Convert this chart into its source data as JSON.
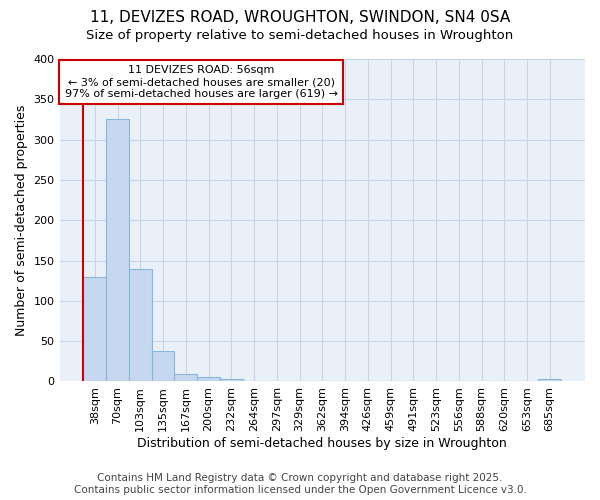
{
  "title1": "11, DEVIZES ROAD, WROUGHTON, SWINDON, SN4 0SA",
  "title2": "Size of property relative to semi-detached houses in Wroughton",
  "xlabel": "Distribution of semi-detached houses by size in Wroughton",
  "ylabel": "Number of semi-detached properties",
  "categories": [
    "38sqm",
    "70sqm",
    "103sqm",
    "135sqm",
    "167sqm",
    "200sqm",
    "232sqm",
    "264sqm",
    "297sqm",
    "329sqm",
    "362sqm",
    "394sqm",
    "426sqm",
    "459sqm",
    "491sqm",
    "523sqm",
    "556sqm",
    "588sqm",
    "620sqm",
    "653sqm",
    "685sqm"
  ],
  "values": [
    130,
    325,
    140,
    38,
    9,
    5,
    3,
    0,
    0,
    0,
    0,
    0,
    0,
    0,
    0,
    0,
    0,
    0,
    0,
    0,
    3
  ],
  "bar_color": "#c5d8ef",
  "bar_edge_color": "#8ab4d9",
  "annotation_text": "11 DEVIZES ROAD: 56sqm\n← 3% of semi-detached houses are smaller (20)\n97% of semi-detached houses are larger (619) →",
  "annotation_box_color": "#ffffff",
  "annotation_box_edge": "#cc0000",
  "vline_color": "#cc0000",
  "ylim": [
    0,
    400
  ],
  "yticks": [
    0,
    50,
    100,
    150,
    200,
    250,
    300,
    350,
    400
  ],
  "grid_color": "#c8d4e8",
  "bg_color": "#eaf0f8",
  "footer": "Contains HM Land Registry data © Crown copyright and database right 2025.\nContains public sector information licensed under the Open Government Licence v3.0.",
  "title_fontsize": 11,
  "subtitle_fontsize": 9.5,
  "axis_label_fontsize": 9,
  "tick_fontsize": 8,
  "footer_fontsize": 7.5
}
